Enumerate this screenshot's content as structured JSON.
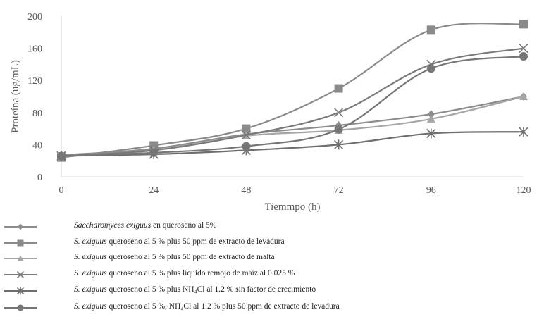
{
  "chart_data": {
    "type": "line",
    "title": "",
    "xlabel": "Tiemmpo (h)",
    "ylabel": "Proteína (ug/mL)",
    "x": [
      0,
      24,
      48,
      72,
      96,
      120
    ],
    "xticks": [
      "0",
      "24",
      "48",
      "72",
      "96",
      "120"
    ],
    "yticks": [
      "0",
      "40",
      "80",
      "120",
      "160",
      "200"
    ],
    "ylim": [
      0,
      200
    ],
    "xlim": [
      0,
      120
    ],
    "grid": false,
    "legend_position": "bottom",
    "series": [
      {
        "name": "Saccharomyces exiguus en queroseno al 5%",
        "italic": "Saccharomyces exiguus",
        "rest": " en queroseno al 5%",
        "marker": "diamond",
        "color": "#8c8c8c",
        "values": [
          27,
          35,
          53,
          64,
          78,
          100
        ]
      },
      {
        "name": "S. exiguus queroseno al 5 % plus 50 ppm de extracto de levadura",
        "italic": "S. exiguus",
        "rest": " queroseno al 5 % plus 50 ppm de extracto de levadura",
        "marker": "square",
        "color": "#8a8a8a",
        "values": [
          24,
          39,
          60,
          110,
          183,
          190
        ]
      },
      {
        "name": "S. exiguus queroseno al 5 % plus 50 ppm de extracto de malta",
        "italic": "S. exiguus",
        "rest": " queroseno al 5 % plus 50 ppm de extracto de malta",
        "marker": "triangle",
        "color": "#a6a6a6",
        "values": [
          26,
          33,
          51,
          58,
          72,
          100
        ]
      },
      {
        "name": "S. exiguus queroseno al 5 % plus líquido remojo de maíz al 0.025 %",
        "italic": "S. exiguus",
        "rest": " queroseno al 5 % plus líquido remojo de maíz al 0.025 %",
        "marker": "x",
        "color": "#7a7a7a",
        "values": [
          26,
          33,
          52,
          80,
          140,
          160
        ]
      },
      {
        "name": "S. exiguus queroseno al 5 % plus NH4Cl al 1.2 % sin factor de crecimiento",
        "italic": "S. exiguus",
        "rest": " queroseno al 5 % plus NH₄Cl al 1.2 % sin factor de crecimiento",
        "marker": "asterisk",
        "color": "#6e6e6e",
        "values": [
          26,
          28,
          33,
          40,
          54,
          56
        ]
      },
      {
        "name": "S. exiguus queroseno al 5 %, NH4Cl al 1.2 % plus 50 ppm de extracto de levadura",
        "italic": "S. exiguus",
        "rest": " queroseno al 5 %, NH₄Cl al 1.2 % plus 50 ppm de extracto de levadura",
        "marker": "circle",
        "color": "#767676",
        "values": [
          26,
          30,
          38,
          59,
          135,
          150
        ]
      }
    ]
  }
}
